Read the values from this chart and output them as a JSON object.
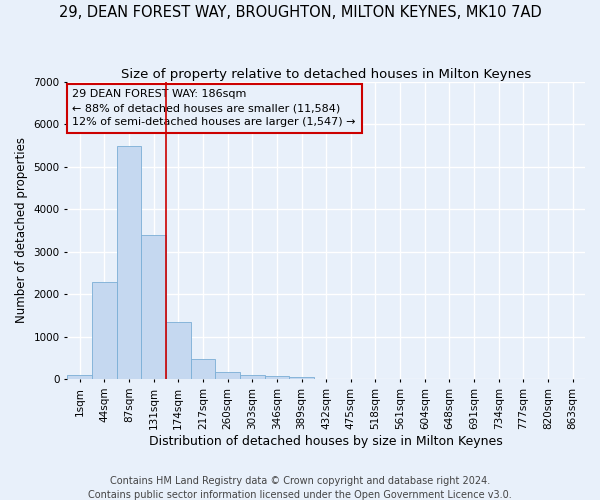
{
  "title": "29, DEAN FOREST WAY, BROUGHTON, MILTON KEYNES, MK10 7AD",
  "subtitle": "Size of property relative to detached houses in Milton Keynes",
  "xlabel": "Distribution of detached houses by size in Milton Keynes",
  "ylabel": "Number of detached properties",
  "footer_line1": "Contains HM Land Registry data © Crown copyright and database right 2024.",
  "footer_line2": "Contains public sector information licensed under the Open Government Licence v3.0.",
  "bar_labels": [
    "1sqm",
    "44sqm",
    "87sqm",
    "131sqm",
    "174sqm",
    "217sqm",
    "260sqm",
    "303sqm",
    "346sqm",
    "389sqm",
    "432sqm",
    "475sqm",
    "518sqm",
    "561sqm",
    "604sqm",
    "648sqm",
    "691sqm",
    "734sqm",
    "777sqm",
    "820sqm",
    "863sqm"
  ],
  "bar_values": [
    100,
    2280,
    5480,
    3400,
    1350,
    470,
    175,
    110,
    75,
    60,
    0,
    0,
    0,
    0,
    0,
    0,
    0,
    0,
    0,
    0,
    0
  ],
  "bar_color": "#c5d8f0",
  "bar_edgecolor": "#7aaed6",
  "bg_color": "#e8f0fa",
  "grid_color": "#ffffff",
  "vline_color": "#cc0000",
  "vline_x_index": 4,
  "annotation_text": "29 DEAN FOREST WAY: 186sqm\n← 88% of detached houses are smaller (11,584)\n12% of semi-detached houses are larger (1,547) →",
  "annotation_box_edgecolor": "#cc0000",
  "ylim": [
    0,
    7000
  ],
  "yticks": [
    0,
    1000,
    2000,
    3000,
    4000,
    5000,
    6000,
    7000
  ],
  "title_fontsize": 10.5,
  "subtitle_fontsize": 9.5,
  "annot_fontsize": 8,
  "xlabel_fontsize": 9,
  "ylabel_fontsize": 8.5,
  "footer_fontsize": 7,
  "tick_fontsize": 7.5
}
